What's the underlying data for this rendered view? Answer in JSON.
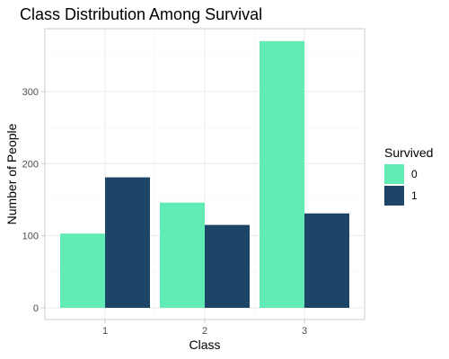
{
  "chart_data": {
    "type": "bar",
    "title": "Class Distribution Among Survival",
    "xlabel": "Class",
    "ylabel": "Number of People",
    "categories": [
      "1",
      "2",
      "3"
    ],
    "series": [
      {
        "name": "0",
        "values": [
          103,
          146,
          370
        ],
        "color": "#61EBB5"
      },
      {
        "name": "1",
        "values": [
          181,
          115,
          131
        ],
        "color": "#1D4568"
      }
    ],
    "yticks": [
      0,
      100,
      200,
      300
    ],
    "ylim": [
      0,
      388
    ],
    "grid": true,
    "legend": {
      "title": "Survived",
      "position": "right"
    }
  }
}
